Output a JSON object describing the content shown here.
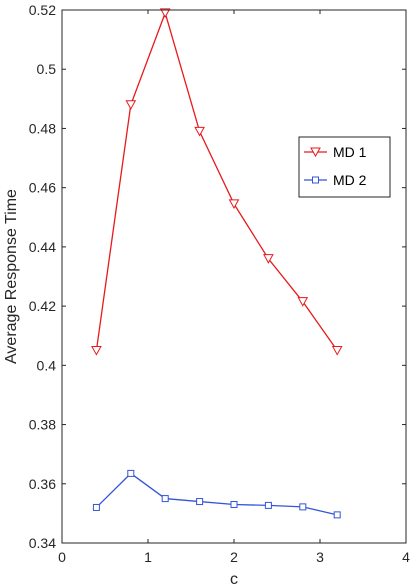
{
  "chart_data": {
    "type": "line",
    "xlabel": "c",
    "ylabel": "Average Response Time",
    "xlim": [
      0,
      4
    ],
    "ylim": [
      0.34,
      0.52
    ],
    "xticks": [
      0,
      1,
      2,
      3,
      4
    ],
    "yticks": [
      0.34,
      0.36,
      0.38,
      0.4,
      0.42,
      0.44,
      0.46,
      0.48,
      0.5,
      0.52
    ],
    "xtick_labels": [
      "0",
      "1",
      "2",
      "3",
      "4"
    ],
    "ytick_labels": [
      "0.34",
      "0.36",
      "0.38",
      "0.4",
      "0.42",
      "0.44",
      "0.46",
      "0.48",
      "0.5",
      "0.52"
    ],
    "grid": false,
    "legend_position": "right, upper-middle",
    "x": [
      0.4,
      0.8,
      1.2,
      1.6,
      2.0,
      2.4,
      2.8,
      3.2
    ],
    "series": [
      {
        "name": "MD 1",
        "color": "#e8191d",
        "marker": "triangle-down",
        "values": [
          0.405,
          0.488,
          0.519,
          0.479,
          0.4545,
          0.436,
          0.4215,
          0.405
        ]
      },
      {
        "name": "MD 2",
        "color": "#3455d8",
        "marker": "square",
        "values": [
          0.352,
          0.3635,
          0.355,
          0.354,
          0.353,
          0.3527,
          0.3522,
          0.3495
        ]
      }
    ]
  }
}
